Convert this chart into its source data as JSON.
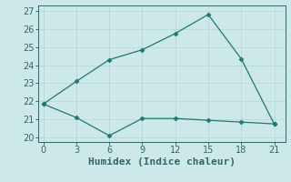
{
  "xlabel": "Humidex (Indice chaleur)",
  "line1_x": [
    0,
    3,
    6,
    9,
    12,
    15,
    18,
    21
  ],
  "line1_y": [
    21.85,
    21.1,
    20.1,
    21.05,
    21.05,
    20.95,
    20.85,
    20.75
  ],
  "line2_x": [
    0,
    3,
    6,
    9,
    12,
    15,
    18,
    21
  ],
  "line2_y": [
    21.85,
    23.1,
    24.3,
    24.85,
    25.75,
    26.8,
    24.35,
    20.75
  ],
  "line_color": "#1e7a70",
  "marker": "D",
  "marker_size": 2.5,
  "xlim": [
    -0.5,
    22.0
  ],
  "ylim": [
    19.75,
    27.3
  ],
  "xticks": [
    0,
    3,
    6,
    9,
    12,
    15,
    18,
    21
  ],
  "yticks": [
    20,
    21,
    22,
    23,
    24,
    25,
    26,
    27
  ],
  "grid_color": "#b8d8d8",
  "bg_color": "#cce8e8",
  "tick_label_fontsize": 7,
  "xlabel_fontsize": 8
}
